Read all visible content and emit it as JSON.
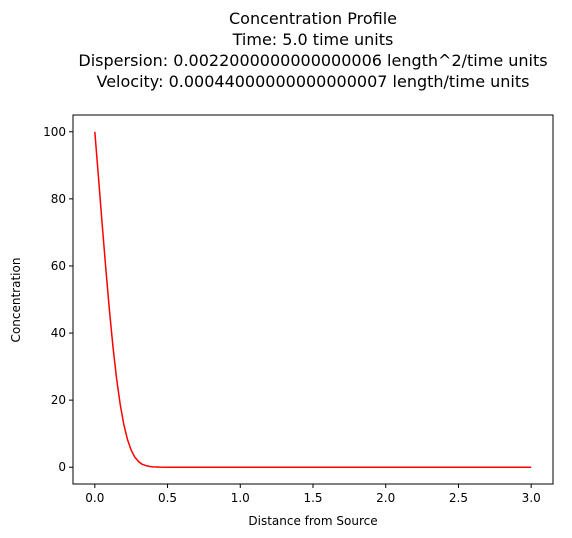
{
  "chart_data": {
    "type": "line",
    "title_lines": [
      "Concentration Profile",
      "Time: 5.0 time units",
      "Dispersion: 0.0022000000000000006 length^2/time units",
      "Velocity: 0.00044000000000000007 length/time units"
    ],
    "xlabel": "Distance from Source",
    "ylabel": "Concentration",
    "xlim": [
      -0.15,
      3.15
    ],
    "ylim": [
      -5,
      105
    ],
    "xticks": [
      0.0,
      0.5,
      1.0,
      1.5,
      2.0,
      2.5,
      3.0
    ],
    "xtick_labels": [
      "0.0",
      "0.5",
      "1.0",
      "1.5",
      "2.0",
      "2.5",
      "3.0"
    ],
    "yticks": [
      0,
      20,
      40,
      60,
      80,
      100
    ],
    "ytick_labels": [
      "0",
      "20",
      "40",
      "60",
      "80",
      "100"
    ],
    "grid": false,
    "colors": {
      "line": "#ff0000",
      "axes": "#000000"
    },
    "series": [
      {
        "x": [
          0.0,
          0.025,
          0.05,
          0.075,
          0.1,
          0.125,
          0.15,
          0.175,
          0.2,
          0.225,
          0.25,
          0.275,
          0.3,
          0.325,
          0.35,
          0.375,
          0.4,
          0.45,
          0.5,
          0.6,
          0.8,
          1.0,
          1.5,
          2.0,
          2.5,
          3.0
        ],
        "values": [
          100.0,
          86.5,
          72.8,
          59.5,
          47.0,
          35.8,
          26.3,
          18.6,
          12.6,
          8.2,
          5.1,
          3.0,
          1.7,
          0.9,
          0.5,
          0.25,
          0.12,
          0.03,
          0.0,
          0.0,
          0.0,
          0.0,
          0.0,
          0.0,
          0.0,
          0.0
        ]
      }
    ]
  }
}
